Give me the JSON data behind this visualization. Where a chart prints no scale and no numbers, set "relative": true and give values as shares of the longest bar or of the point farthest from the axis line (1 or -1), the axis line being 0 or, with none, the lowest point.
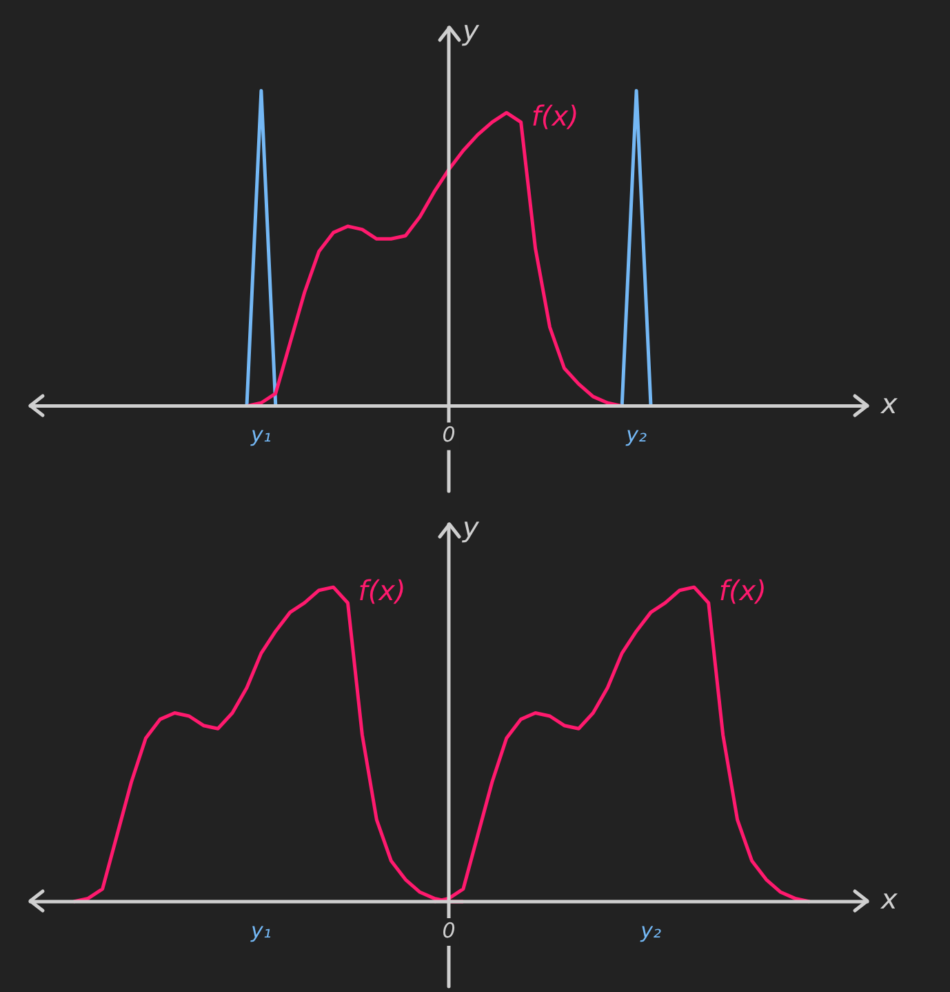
{
  "chart_data": [
    {
      "type": "line",
      "relative": true,
      "xlabel": "x",
      "ylabel": "y",
      "categories": [
        null,
        null,
        null,
        null,
        null,
        null,
        null,
        null,
        null,
        null,
        null,
        null,
        null,
        null,
        null,
        null,
        "y₁",
        null,
        null,
        null,
        null,
        null,
        null,
        null,
        null,
        null,
        null,
        null,
        null,
        "0",
        null,
        null,
        null,
        null,
        null,
        null,
        null,
        null,
        null,
        null,
        null,
        null,
        "y₂",
        null,
        null,
        null,
        null,
        null,
        null,
        null,
        null,
        null,
        null,
        null,
        null,
        null,
        null,
        null,
        null
      ],
      "series": [
        {
          "name": "f(x)",
          "color": "#ff1a6e",
          "values": [
            null,
            null,
            null,
            null,
            null,
            null,
            null,
            null,
            null,
            null,
            null,
            null,
            null,
            null,
            null,
            0,
            0.01,
            0.04,
            0.2,
            0.36,
            0.49,
            0.55,
            0.57,
            0.56,
            0.53,
            0.53,
            0.54,
            0.6,
            0.68,
            0.75,
            0.81,
            0.86,
            0.9,
            0.93,
            0.9,
            0.5,
            0.25,
            0.12,
            0.07,
            0.03,
            0.01,
            0,
            0,
            null,
            null,
            null,
            null,
            null,
            null,
            null,
            null,
            null,
            null,
            null,
            null,
            null,
            null,
            null,
            null
          ]
        },
        {
          "color": "#74b8f5",
          "values": [
            null,
            null,
            null,
            null,
            null,
            null,
            null,
            null,
            null,
            null,
            null,
            null,
            null,
            null,
            null,
            0,
            1,
            0,
            null,
            null,
            null,
            null,
            null,
            null,
            null,
            null,
            null,
            null,
            null,
            null,
            null,
            null,
            null,
            null,
            null,
            null,
            null,
            null,
            null,
            null,
            null,
            null,
            null,
            null,
            null,
            null,
            null,
            null,
            null,
            null,
            null,
            null,
            null,
            null,
            null,
            null,
            null,
            null,
            null
          ]
        },
        {
          "color": "#74b8f5",
          "values": [
            null,
            null,
            null,
            null,
            null,
            null,
            null,
            null,
            null,
            null,
            null,
            null,
            null,
            null,
            null,
            null,
            null,
            null,
            null,
            null,
            null,
            null,
            null,
            null,
            null,
            null,
            null,
            null,
            null,
            null,
            null,
            null,
            null,
            null,
            null,
            null,
            null,
            null,
            null,
            null,
            null,
            0,
            1,
            0,
            null,
            null,
            null,
            null,
            null,
            null,
            null,
            null,
            null,
            null,
            null,
            null,
            null,
            null,
            null
          ]
        }
      ]
    },
    {
      "type": "line",
      "relative": true,
      "xlabel": "x",
      "ylabel": "y",
      "categories": [
        null,
        null,
        null,
        null,
        null,
        null,
        null,
        null,
        null,
        null,
        null,
        null,
        null,
        null,
        null,
        null,
        "y₁",
        null,
        null,
        null,
        null,
        null,
        null,
        null,
        null,
        null,
        null,
        null,
        null,
        "0",
        null,
        null,
        null,
        null,
        null,
        null,
        null,
        null,
        null,
        null,
        null,
        null,
        null,
        "y₂",
        null,
        null,
        null,
        null,
        null,
        null,
        null,
        null,
        null,
        null,
        null,
        null,
        null,
        null,
        null
      ],
      "series": [
        {
          "name": "f(x)",
          "color": "#ff1a6e",
          "values": [
            null,
            null,
            null,
            0,
            0.01,
            0.04,
            0.21,
            0.38,
            0.52,
            0.58,
            0.6,
            0.59,
            0.56,
            0.55,
            0.6,
            0.68,
            0.79,
            0.86,
            0.92,
            0.95,
            0.99,
            1,
            0.95,
            0.53,
            0.26,
            0.13,
            0.07,
            0.03,
            0.01,
            0,
            0,
            null,
            null,
            null,
            null,
            null,
            null,
            null,
            null,
            null,
            null,
            null,
            null,
            null,
            null,
            null,
            null,
            null,
            null,
            null,
            null,
            null,
            null,
            null,
            null,
            null,
            null,
            null,
            null
          ]
        },
        {
          "name": "f(x)",
          "color": "#ff1a6e",
          "values": [
            null,
            null,
            null,
            null,
            null,
            null,
            null,
            null,
            null,
            null,
            null,
            null,
            null,
            null,
            null,
            null,
            null,
            null,
            null,
            null,
            null,
            null,
            null,
            null,
            null,
            null,
            null,
            null,
            0,
            0.01,
            0.04,
            0.21,
            0.38,
            0.52,
            0.58,
            0.6,
            0.59,
            0.56,
            0.55,
            0.6,
            0.68,
            0.79,
            0.86,
            0.92,
            0.95,
            0.99,
            1,
            0.95,
            0.53,
            0.26,
            0.13,
            0.07,
            0.03,
            0.01,
            0,
            null,
            null,
            null,
            null
          ]
        }
      ]
    }
  ]
}
